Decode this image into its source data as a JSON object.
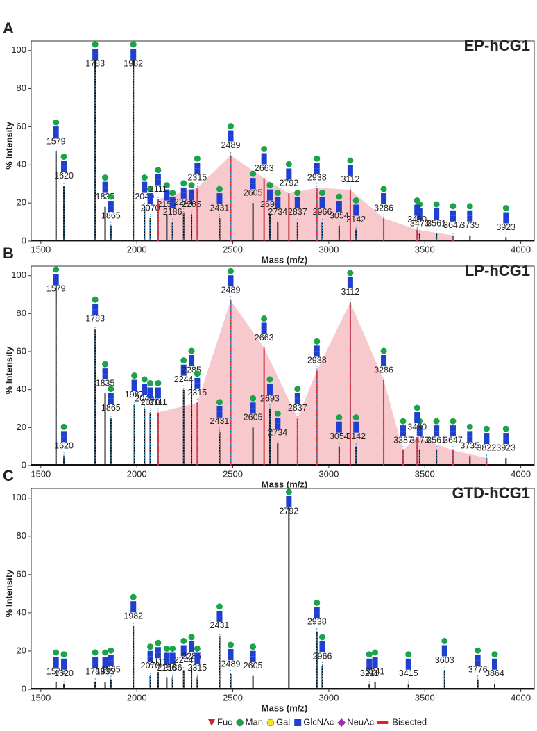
{
  "chart_data": [
    {
      "type": "stem",
      "panel": "A",
      "title": "EP-hCG1",
      "x_label": "Mass (m/z)",
      "y_label": "% Intensity",
      "xlim": [
        1450,
        4070
      ],
      "ylim": [
        0,
        105
      ],
      "xticks": [
        1500,
        2000,
        2500,
        3000,
        3500,
        4000
      ],
      "yticks": [
        0,
        20,
        40,
        60,
        80,
        100
      ],
      "envelope_color": "#f7c9cd",
      "series": [
        {
          "color": "#111111",
          "x": [
            1579,
            1620,
            1783,
            1835,
            1865,
            1982,
            2040,
            2070,
            2156,
            2186,
            2244,
            2285,
            2431,
            2605,
            2693,
            2734,
            2837,
            2966,
            3054,
            3142,
            3473,
            3561,
            3735,
            3923
          ],
          "values": [
            47,
            29,
            100,
            18,
            8,
            97,
            18,
            12,
            14,
            10,
            15,
            14,
            12,
            20,
            14,
            10,
            10,
            10,
            8,
            6,
            4,
            4,
            3,
            2
          ]
        },
        {
          "color": "#e3202a",
          "x": [
            2111,
            2315,
            2489,
            2663,
            2792,
            2938,
            3112,
            3286,
            3460,
            3647
          ],
          "values": [
            22,
            28,
            45,
            33,
            25,
            28,
            27,
            12,
            6,
            3
          ]
        }
      ]
    },
    {
      "type": "stem",
      "panel": "B",
      "title": "LP-hCG1",
      "x_label": "Mass (m/z)",
      "y_label": "% Intensity",
      "xlim": [
        1450,
        4070
      ],
      "ylim": [
        0,
        105
      ],
      "xticks": [
        1500,
        2000,
        2500,
        3000,
        3500,
        4000
      ],
      "yticks": [
        0,
        20,
        40,
        60,
        80,
        100
      ],
      "envelope_color": "#f7c9cd",
      "series": [
        {
          "color": "#111111",
          "x": [
            1579,
            1620,
            1783,
            1835,
            1865,
            1987,
            2040,
            2070,
            2244,
            2285,
            2431,
            2605,
            2693,
            2734,
            3054,
            3142,
            3473,
            3561,
            3735,
            3923
          ],
          "values": [
            100,
            5,
            72,
            38,
            25,
            32,
            30,
            28,
            40,
            45,
            18,
            20,
            30,
            12,
            10,
            10,
            8,
            8,
            5,
            4
          ]
        },
        {
          "color": "#e3202a",
          "x": [
            2111,
            2315,
            2489,
            2663,
            2837,
            2938,
            3112,
            3286,
            3387,
            3460,
            3647,
            3822
          ],
          "values": [
            28,
            33,
            87,
            62,
            25,
            50,
            86,
            45,
            8,
            15,
            8,
            4
          ]
        }
      ]
    },
    {
      "type": "stem",
      "panel": "C",
      "title": "GTD-hCG1",
      "x_label": "Mass (m/z)",
      "y_label": "% Intensity",
      "xlim": [
        1450,
        4070
      ],
      "ylim": [
        0,
        105
      ],
      "xticks": [
        1500,
        2000,
        2500,
        3000,
        3500,
        4000
      ],
      "yticks": [
        0,
        20,
        40,
        60,
        80,
        100
      ],
      "envelope_color": "#f7c9cd",
      "series": [
        {
          "color": "#111111",
          "x": [
            1579,
            1620,
            1783,
            1835,
            1865,
            1982,
            2070,
            2111,
            2156,
            2186,
            2244,
            2285,
            2315,
            2431,
            2489,
            2605,
            2792,
            2938,
            2966,
            3211,
            3241,
            3415,
            3603,
            3776,
            3864
          ],
          "values": [
            4,
            3,
            4,
            4,
            5,
            33,
            7,
            9,
            6,
            6,
            10,
            12,
            6,
            28,
            8,
            7,
            100,
            30,
            12,
            3,
            4,
            3,
            10,
            5,
            3
          ]
        }
      ]
    }
  ],
  "legend": [
    {
      "label": "Fuc",
      "color": "#c1272d",
      "shape": "triangle"
    },
    {
      "label": "Man",
      "color": "#1aa34a",
      "shape": "circle"
    },
    {
      "label": "Gal",
      "color": "#f5e614",
      "shape": "circle"
    },
    {
      "label": "GlcNAc",
      "color": "#1f3fd0",
      "shape": "square"
    },
    {
      "label": "NeuAc",
      "color": "#a12dae",
      "shape": "diamond"
    },
    {
      "label": "Bisected",
      "color": "#e3202a",
      "shape": "bar"
    }
  ]
}
